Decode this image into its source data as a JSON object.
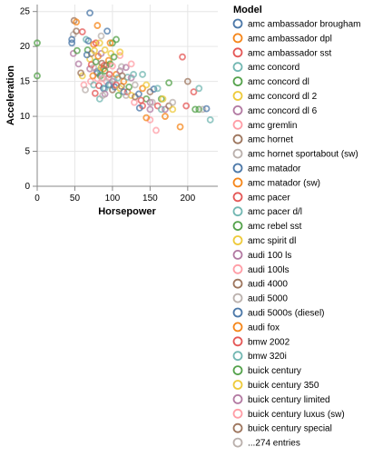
{
  "chart_data": {
    "type": "scatter",
    "title": "",
    "xlabel": "Horsepower",
    "ylabel": "Acceleration",
    "xlim": [
      0,
      240
    ],
    "ylim": [
      0,
      26
    ],
    "x_ticks": [
      0,
      50,
      100,
      150,
      200
    ],
    "y_ticks": [
      0,
      5,
      10,
      15,
      20,
      25
    ],
    "grid": true,
    "legend_position": "right",
    "legend_title": "Model",
    "legend": [
      {
        "name": "amc ambassador brougham",
        "color": "#4c78a8"
      },
      {
        "name": "amc ambassador dpl",
        "color": "#f58518"
      },
      {
        "name": "amc ambassador sst",
        "color": "#e45756"
      },
      {
        "name": "amc concord",
        "color": "#72b7b2"
      },
      {
        "name": "amc concord dl",
        "color": "#54a24b"
      },
      {
        "name": "amc concord dl 2",
        "color": "#eeca3b"
      },
      {
        "name": "amc concord dl 6",
        "color": "#b279a2"
      },
      {
        "name": "amc gremlin",
        "color": "#ff9da6"
      },
      {
        "name": "amc hornet",
        "color": "#9d755d"
      },
      {
        "name": "amc hornet sportabout (sw)",
        "color": "#bab0ac"
      },
      {
        "name": "amc matador",
        "color": "#4c78a8"
      },
      {
        "name": "amc matador (sw)",
        "color": "#f58518"
      },
      {
        "name": "amc pacer",
        "color": "#e45756"
      },
      {
        "name": "amc pacer d/l",
        "color": "#72b7b2"
      },
      {
        "name": "amc rebel sst",
        "color": "#54a24b"
      },
      {
        "name": "amc spirit dl",
        "color": "#eeca3b"
      },
      {
        "name": "audi 100 ls",
        "color": "#b279a2"
      },
      {
        "name": "audi 100ls",
        "color": "#ff9da6"
      },
      {
        "name": "audi 4000",
        "color": "#9d755d"
      },
      {
        "name": "audi 5000",
        "color": "#bab0ac"
      },
      {
        "name": "audi 5000s (diesel)",
        "color": "#4c78a8"
      },
      {
        "name": "audi fox",
        "color": "#f58518"
      },
      {
        "name": "bmw 2002",
        "color": "#e45756"
      },
      {
        "name": "bmw 320i",
        "color": "#72b7b2"
      },
      {
        "name": "buick century",
        "color": "#54a24b"
      },
      {
        "name": "buick century 350",
        "color": "#eeca3b"
      },
      {
        "name": "buick century limited",
        "color": "#b279a2"
      },
      {
        "name": "buick century luxus (sw)",
        "color": "#ff9da6"
      },
      {
        "name": "buick century special",
        "color": "#9d755d"
      },
      {
        "name": "...274 entries",
        "color": "#bab0ac"
      }
    ],
    "points": [
      [
        0,
        20.5,
        4
      ],
      [
        0,
        15.8,
        4
      ],
      [
        48,
        21.7,
        9
      ],
      [
        49,
        23.7,
        8
      ],
      [
        52,
        23.5,
        1
      ],
      [
        52,
        22.2,
        8
      ],
      [
        46,
        20.5,
        0
      ],
      [
        46,
        21.0,
        0
      ],
      [
        48,
        19.0,
        6
      ],
      [
        53,
        19.4,
        4
      ],
      [
        60,
        22.1,
        2
      ],
      [
        65,
        21.0,
        3
      ],
      [
        67,
        19.5,
        4
      ],
      [
        68,
        20.8,
        0
      ],
      [
        70,
        24.8,
        0
      ],
      [
        70,
        18.2,
        5
      ],
      [
        70,
        16.8,
        6
      ],
      [
        71,
        15.0,
        7
      ],
      [
        72,
        17.4,
        2
      ],
      [
        72,
        19.0,
        8
      ],
      [
        75,
        20.3,
        1
      ],
      [
        75,
        14.5,
        3
      ],
      [
        75,
        17.0,
        9
      ],
      [
        76,
        19.4,
        5
      ],
      [
        78,
        20.5,
        2
      ],
      [
        78,
        17.8,
        4
      ],
      [
        79,
        16.4,
        6
      ],
      [
        80,
        15.4,
        7
      ],
      [
        80,
        16.2,
        0
      ],
      [
        81,
        18.6,
        1
      ],
      [
        82,
        14.4,
        2
      ],
      [
        83,
        16.6,
        3
      ],
      [
        84,
        15.8,
        4
      ],
      [
        85,
        17.0,
        5
      ],
      [
        85,
        19.0,
        6
      ],
      [
        86,
        15.4,
        7
      ],
      [
        86,
        17.6,
        8
      ],
      [
        88,
        15.5,
        9
      ],
      [
        88,
        14.0,
        0
      ],
      [
        88,
        16.8,
        1
      ],
      [
        89,
        17.3,
        2
      ],
      [
        90,
        14.0,
        3
      ],
      [
        90,
        16.5,
        4
      ],
      [
        90,
        19.5,
        5
      ],
      [
        90,
        13.2,
        6
      ],
      [
        92,
        15.0,
        7
      ],
      [
        92,
        17.3,
        8
      ],
      [
        95,
        15.5,
        9
      ],
      [
        95,
        14.5,
        0
      ],
      [
        95,
        18.0,
        1
      ],
      [
        96,
        16.0,
        2
      ],
      [
        97,
        14.5,
        3
      ],
      [
        97,
        17.5,
        4
      ],
      [
        98,
        19.0,
        5
      ],
      [
        100,
        15.0,
        6
      ],
      [
        100,
        17.2,
        7
      ],
      [
        100,
        13.8,
        8
      ],
      [
        102,
        15.3,
        9
      ],
      [
        103,
        14.2,
        0
      ],
      [
        105,
        16.0,
        1
      ],
      [
        105,
        14.5,
        2
      ],
      [
        107,
        15.5,
        3
      ],
      [
        108,
        13.0,
        4
      ],
      [
        110,
        14.0,
        5
      ],
      [
        110,
        16.5,
        6
      ],
      [
        110,
        18.7,
        7
      ],
      [
        112,
        14.3,
        8
      ],
      [
        112,
        17.1,
        9
      ],
      [
        115,
        13.5,
        0
      ],
      [
        115,
        15.0,
        1
      ],
      [
        120,
        13.5,
        2
      ],
      [
        120,
        15.6,
        3
      ],
      [
        122,
        14.2,
        4
      ],
      [
        125,
        13.0,
        5
      ],
      [
        125,
        15.5,
        6
      ],
      [
        129,
        12.0,
        7
      ],
      [
        130,
        12.8,
        8
      ],
      [
        130,
        14.5,
        9
      ],
      [
        135,
        13.2,
        0
      ],
      [
        140,
        14.0,
        1
      ],
      [
        140,
        11.5,
        2
      ],
      [
        140,
        16.0,
        3
      ],
      [
        145,
        12.5,
        4
      ],
      [
        145,
        14.5,
        5
      ],
      [
        150,
        12.0,
        6
      ],
      [
        150,
        9.5,
        7
      ],
      [
        150,
        13.5,
        8
      ],
      [
        153,
        12.0,
        9
      ],
      [
        155,
        13.9,
        0
      ],
      [
        158,
        8.0,
        7
      ],
      [
        160,
        11.5,
        2
      ],
      [
        165,
        11.0,
        3
      ],
      [
        165,
        12.5,
        4
      ],
      [
        167,
        12.5,
        5
      ],
      [
        170,
        11.0,
        6
      ],
      [
        170,
        10.0,
        1
      ],
      [
        175,
        11.5,
        8
      ],
      [
        180,
        12.0,
        9
      ],
      [
        190,
        8.5,
        1
      ],
      [
        193,
        18.5,
        2
      ],
      [
        198,
        11.5,
        2
      ],
      [
        200,
        15.0,
        8
      ],
      [
        208,
        13.5,
        2
      ],
      [
        210,
        11.0,
        4
      ],
      [
        215,
        11.0,
        4
      ],
      [
        215,
        14.0,
        3
      ],
      [
        220,
        11.0,
        9
      ],
      [
        225,
        11.1,
        0
      ],
      [
        230,
        9.5,
        3
      ],
      [
        100,
        20.5,
        4
      ],
      [
        60,
        15.8,
        5
      ],
      [
        55,
        17.5,
        6
      ],
      [
        62,
        14.5,
        7
      ],
      [
        58,
        16.2,
        8
      ],
      [
        64,
        13.8,
        9
      ],
      [
        66,
        18.8,
        0
      ],
      [
        74,
        15.8,
        1
      ],
      [
        77,
        13.3,
        2
      ],
      [
        83,
        12.5,
        3
      ],
      [
        87,
        13.0,
        9
      ],
      [
        93,
        22.2,
        0
      ],
      [
        97,
        20.5,
        1
      ],
      [
        105,
        21.0,
        4
      ],
      [
        110,
        19.2,
        5
      ],
      [
        118,
        17.0,
        6
      ],
      [
        125,
        17.5,
        7
      ],
      [
        113,
        15.8,
        8
      ],
      [
        118,
        13.0,
        9
      ],
      [
        136,
        11.2,
        0
      ],
      [
        160,
        14.0,
        3
      ],
      [
        175,
        14.8,
        4
      ],
      [
        180,
        11.0,
        5
      ],
      [
        150,
        11.0,
        6
      ],
      [
        145,
        9.8,
        1
      ],
      [
        138,
        12.3,
        2
      ],
      [
        128,
        16.0,
        3
      ],
      [
        102,
        18.5,
        4
      ],
      [
        83,
        20.5,
        5
      ],
      [
        85,
        21.5,
        9
      ],
      [
        80,
        23.0,
        1
      ]
    ]
  }
}
